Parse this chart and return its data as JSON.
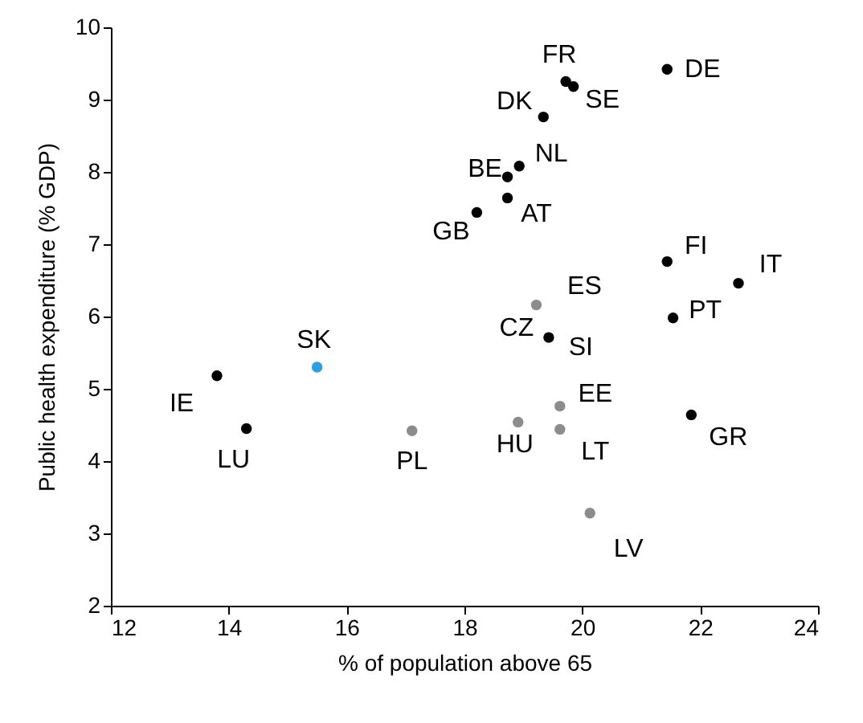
{
  "chart_data": {
    "type": "scatter",
    "xlabel": "% of population above 65",
    "ylabel": "Public health expenditure  (% GDP)",
    "xlim": [
      12,
      24
    ],
    "xticks": [
      12,
      14,
      16,
      18,
      20,
      22,
      24
    ],
    "ylim": [
      2,
      10
    ],
    "yticks": [
      2,
      3,
      4,
      5,
      6,
      7,
      8,
      9,
      10
    ],
    "grid": false,
    "series": [
      {
        "color": "#000000",
        "x": [
          19.72,
          19.85,
          21.44,
          19.34,
          18.93,
          18.73,
          18.73,
          18.21,
          21.44,
          22.65,
          21.54,
          19.43,
          13.8,
          14.3,
          21.85
        ],
        "values": [
          9.25,
          9.18,
          9.42,
          8.76,
          8.08,
          7.93,
          7.64,
          7.44,
          6.76,
          6.46,
          5.98,
          5.71,
          5.18,
          4.45,
          4.64
        ]
      },
      {
        "color": "#8c8c8c",
        "x": [
          19.22,
          17.11,
          18.91,
          19.62,
          19.62,
          20.13
        ],
        "values": [
          6.16,
          4.42,
          4.54,
          4.76,
          4.44,
          3.28
        ]
      },
      {
        "color": "#2e9ee0",
        "x": [
          15.5
        ],
        "values": [
          5.3
        ]
      }
    ],
    "annotations": [
      {
        "text": "FR",
        "x": 19.72,
        "y": 9.25
      },
      {
        "text": "SE",
        "x": 19.85,
        "y": 9.18
      },
      {
        "text": "DE",
        "x": 21.44,
        "y": 9.42
      },
      {
        "text": "DK",
        "x": 19.34,
        "y": 8.76
      },
      {
        "text": "NL",
        "x": 18.93,
        "y": 8.08
      },
      {
        "text": "BE",
        "x": 18.73,
        "y": 7.93
      },
      {
        "text": "AT",
        "x": 18.73,
        "y": 7.64
      },
      {
        "text": "GB",
        "x": 18.21,
        "y": 7.44
      },
      {
        "text": "FI",
        "x": 21.44,
        "y": 6.76
      },
      {
        "text": "IT",
        "x": 22.65,
        "y": 6.46
      },
      {
        "text": "PT",
        "x": 21.54,
        "y": 5.98
      },
      {
        "text": "CZ",
        "x": 19.43,
        "y": 5.71
      },
      {
        "text": "SI",
        "x": 19.43,
        "y": 5.71
      },
      {
        "text": "IE",
        "x": 13.8,
        "y": 5.18
      },
      {
        "text": "LU",
        "x": 14.3,
        "y": 4.45
      },
      {
        "text": "GR",
        "x": 21.85,
        "y": 4.64
      },
      {
        "text": "ES",
        "x": 19.22,
        "y": 6.16
      },
      {
        "text": "PL",
        "x": 17.11,
        "y": 4.42
      },
      {
        "text": "HU",
        "x": 18.91,
        "y": 4.54
      },
      {
        "text": "EE",
        "x": 19.62,
        "y": 4.76
      },
      {
        "text": "LT",
        "x": 19.62,
        "y": 4.44
      },
      {
        "text": "LV",
        "x": 20.13,
        "y": 3.28
      },
      {
        "text": "SK",
        "x": 15.5,
        "y": 5.3
      }
    ]
  }
}
